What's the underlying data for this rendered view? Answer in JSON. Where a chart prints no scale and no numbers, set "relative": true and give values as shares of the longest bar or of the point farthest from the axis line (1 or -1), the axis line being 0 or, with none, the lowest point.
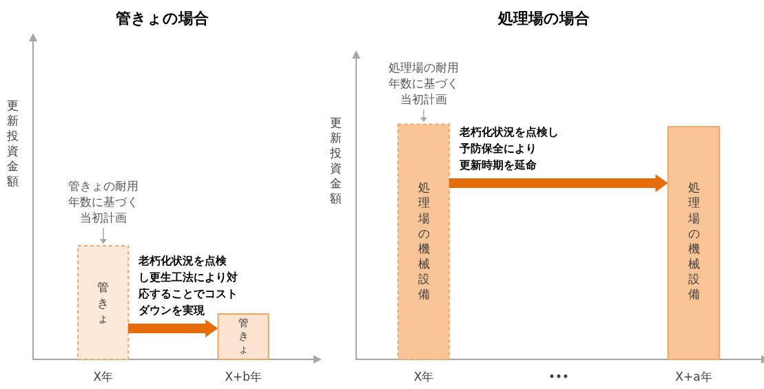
{
  "chart_data": [
    {
      "type": "bar",
      "title": "管きょの場合",
      "ylabel": "更新投資金額",
      "categories": [
        "X年",
        "X+b年"
      ],
      "relative": true,
      "tick_labels": "x",
      "grid": false,
      "legend": false,
      "series": [
        {
          "values": [
            1,
            null
          ],
          "color": "#fde9d9",
          "line_style": "dashed"
        },
        {
          "values": [
            null,
            0.4
          ],
          "color": "#fce4d0",
          "line_style": "solid"
        }
      ],
      "annotations": [
        "管きょ",
        "管きょ",
        "管きょの耐用年数に基づく当初計画",
        "老朽化状況を点検し更生工法により対応することでコストダウンを実現"
      ]
    },
    {
      "type": "bar",
      "title": "処理場の場合",
      "ylabel": "更新投資金額",
      "categories": [
        "X年",
        "•••",
        "X+a年"
      ],
      "relative": true,
      "tick_labels": "x",
      "grid": false,
      "legend": false,
      "series": [
        {
          "values": [
            1,
            null,
            null
          ],
          "color": "#f9c597",
          "line_style": "dashed"
        },
        {
          "values": [
            null,
            null,
            0.99
          ],
          "color": "#f9c597",
          "line_style": "solid"
        }
      ],
      "annotations": [
        "処理場の機械設備",
        "処理場の機械設備",
        "処理場の耐用年数に基づく当初計画",
        "老朽化状況を点検し予防保全により更新時期を延命"
      ]
    }
  ]
}
